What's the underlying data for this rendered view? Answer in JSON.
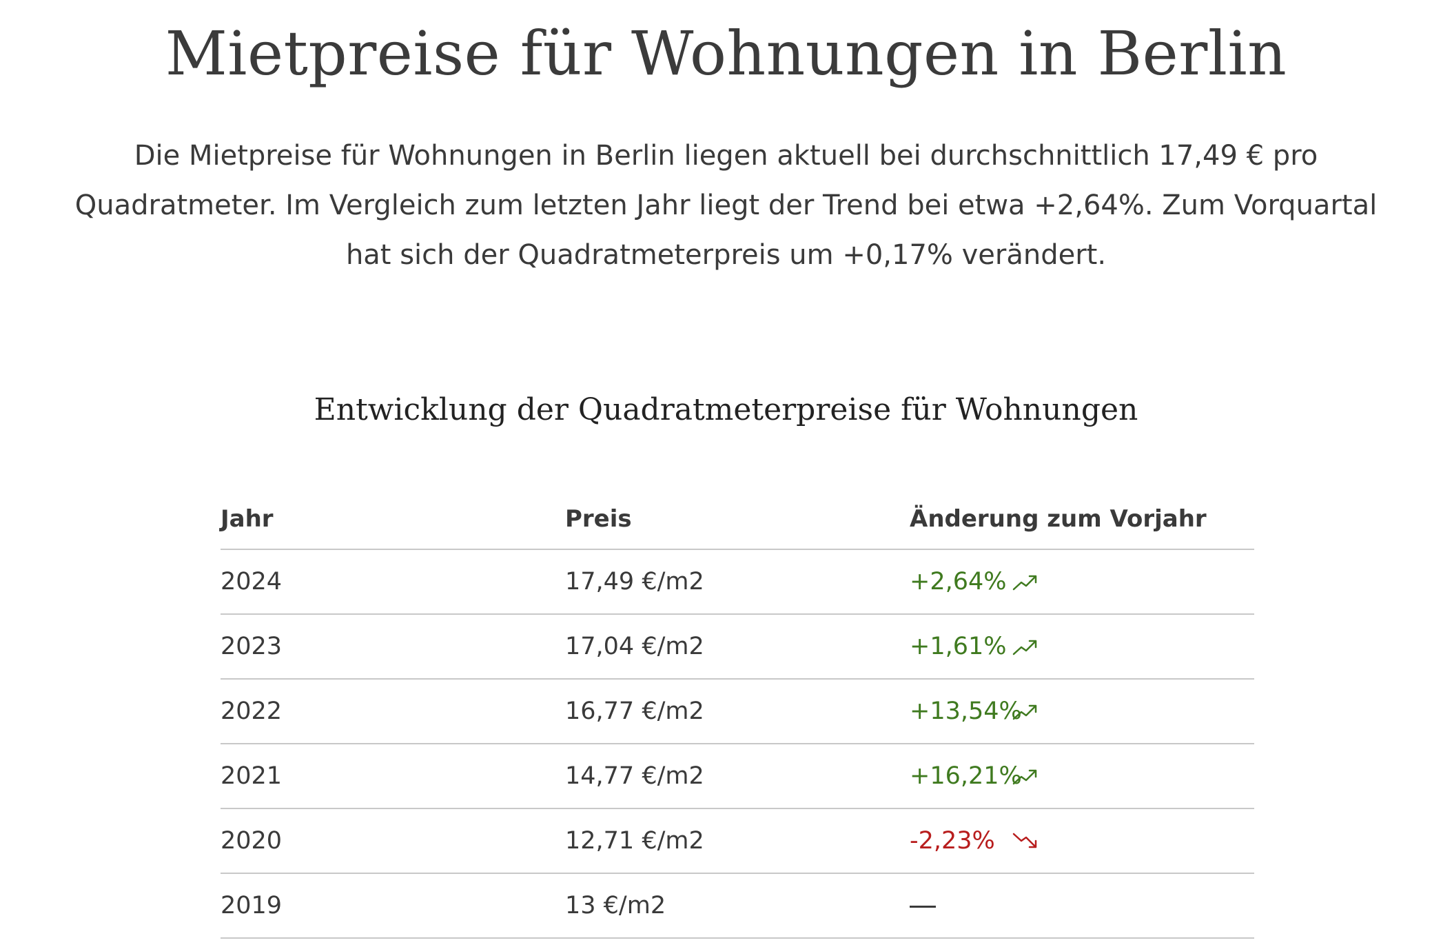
{
  "title": "Mietpreise für Wohnungen in Berlin",
  "intro": "Die Mietpreise für Wohnungen in Berlin liegen aktuell bei durchschnittlich 17,49 € pro Quadratmeter. Im Vergleich zum letzten Jahr liegt der Trend bei etwa +2,64%. Zum Vorquartal hat sich der Quadratmeterpreis um +0,17% verändert.",
  "subtitle": "Entwicklung der Quadratmeterpreise für Wohnungen",
  "colors": {
    "up": "#3f7a1f",
    "down": "#b81d1d"
  },
  "table": {
    "headers": {
      "year": "Jahr",
      "price": "Preis",
      "change": "Änderung zum Vorjahr"
    },
    "rows": [
      {
        "year": "2024",
        "price": "17,49 €/m2",
        "change": "+2,64%",
        "trend": "up",
        "icon": "trend-up-icon"
      },
      {
        "year": "2023",
        "price": "17,04 €/m2",
        "change": "+1,61%",
        "trend": "up",
        "icon": "trend-up-icon"
      },
      {
        "year": "2022",
        "price": "16,77 €/m2",
        "change": "+13,54%",
        "trend": "up",
        "icon": "trend-up-icon"
      },
      {
        "year": "2021",
        "price": "14,77 €/m2",
        "change": "+16,21%",
        "trend": "up",
        "icon": "trend-up-icon"
      },
      {
        "year": "2020",
        "price": "12,71 €/m2",
        "change": "-2,23%",
        "trend": "down",
        "icon": "trend-down-icon"
      },
      {
        "year": "2019",
        "price": "13 €/m2",
        "change": "",
        "trend": "none",
        "icon": "dash-icon"
      }
    ]
  }
}
